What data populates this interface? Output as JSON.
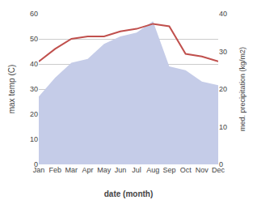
{
  "chart_data": {
    "type": "line",
    "categories": [
      "Jan",
      "Feb",
      "Mar",
      "Apr",
      "May",
      "Jun",
      "Jul",
      "Aug",
      "Sep",
      "Oct",
      "Nov",
      "Dec"
    ],
    "series": [
      {
        "type": "area",
        "color": "#c5cce8",
        "axis": "y2",
        "values": [
          18,
          23,
          27,
          28,
          32,
          34,
          35,
          38,
          26,
          25,
          22,
          21
        ]
      },
      {
        "type": "line",
        "color": "#c0504d",
        "values": [
          41,
          46,
          50,
          51,
          51,
          53,
          54,
          56,
          55,
          44,
          43,
          41
        ]
      }
    ],
    "xlabel": "date (month)",
    "ylabel": "max temp (C)",
    "y2label": "med. precipitation (kg/m2)",
    "ylim": [
      0,
      60
    ],
    "yticks": [
      0,
      10,
      20,
      30,
      40,
      50,
      60
    ],
    "y2lim": [
      0,
      40
    ],
    "y2ticks": [
      0,
      10,
      20,
      30,
      40
    ],
    "grid": true
  }
}
